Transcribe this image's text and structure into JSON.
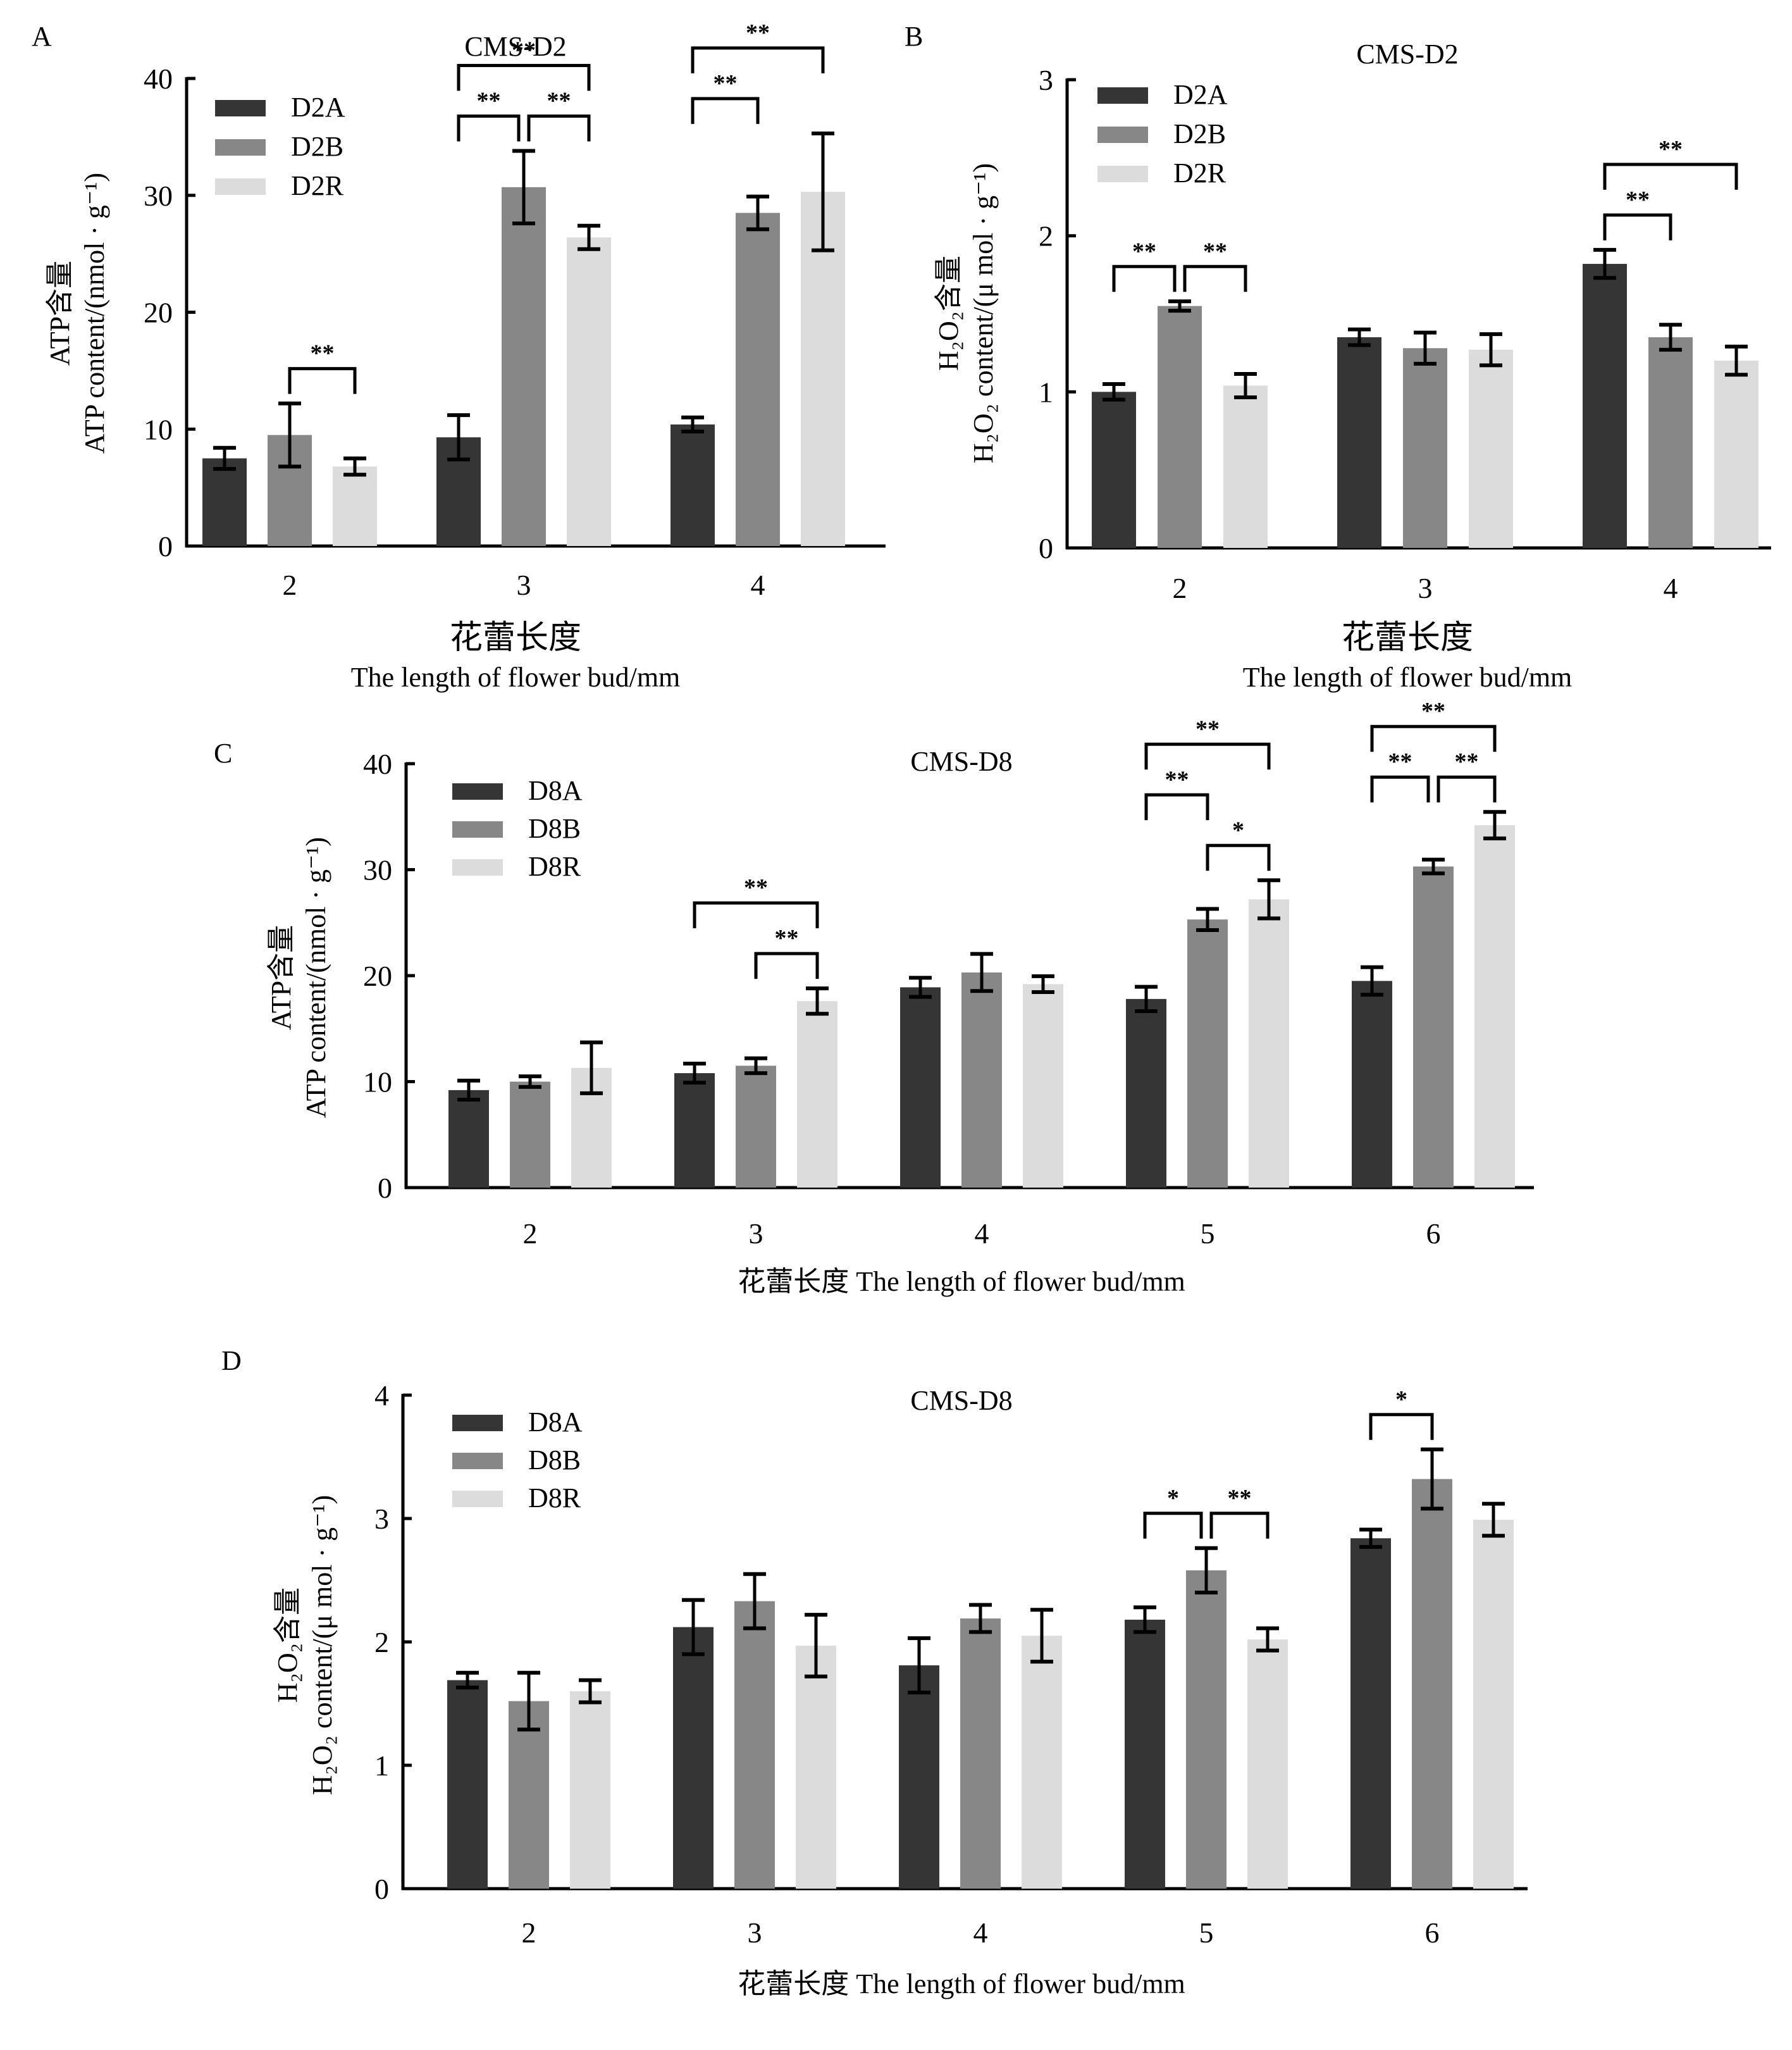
{
  "figure": {
    "colors": {
      "A": "#353535",
      "B": "#878787",
      "R": "#dcdcdc",
      "axis": "#000000"
    }
  },
  "chart_data": [
    {
      "panel": "A",
      "type": "bar",
      "title": "CMS-D2",
      "xlabel_cn": "花蕾长度",
      "xlabel_en": "The length of flower bud/mm",
      "ylabel_cn": "ATP含量",
      "ylabel_en": "ATP content/(nmol · g⁻¹)",
      "categories": [
        "2",
        "3",
        "4"
      ],
      "ylim": [
        0,
        40
      ],
      "yticks": [
        0,
        10,
        20,
        30,
        40
      ],
      "legend": "top-left",
      "series": [
        {
          "name": "D2A",
          "color_key": "A",
          "values": [
            7.5,
            9.3,
            10.4
          ],
          "errors": [
            0.9,
            1.9,
            0.6
          ]
        },
        {
          "name": "D2B",
          "color_key": "B",
          "values": [
            9.5,
            30.7,
            28.5
          ],
          "errors": [
            2.7,
            3.1,
            1.4
          ]
        },
        {
          "name": "D2R",
          "color_key": "R",
          "values": [
            6.8,
            26.4,
            30.3
          ],
          "errors": [
            0.7,
            1.0,
            5.0
          ]
        }
      ],
      "significance": [
        {
          "category": 0,
          "from": 1,
          "to": 2,
          "label": "**",
          "level": 0
        },
        {
          "category": 1,
          "from": 0,
          "to": 1,
          "label": "**",
          "level": 0
        },
        {
          "category": 1,
          "from": 1,
          "to": 2,
          "label": "**",
          "level": 0
        },
        {
          "category": 1,
          "from": 0,
          "to": 2,
          "label": "**",
          "level": 1
        },
        {
          "category": 2,
          "from": 0,
          "to": 1,
          "label": "**",
          "level": 0
        },
        {
          "category": 2,
          "from": 0,
          "to": 2,
          "label": "**",
          "level": 1
        }
      ]
    },
    {
      "panel": "B",
      "type": "bar",
      "title": "CMS-D2",
      "xlabel_cn": "花蕾长度",
      "xlabel_en": "The length of flower bud/mm",
      "ylabel_cn": "H₂O₂含量",
      "ylabel_en": "H₂O₂ content/(μ mol · g⁻¹)",
      "categories": [
        "2",
        "3",
        "4"
      ],
      "ylim": [
        0,
        3
      ],
      "yticks": [
        0,
        1,
        2,
        3
      ],
      "legend": "top-left",
      "series": [
        {
          "name": "D2A",
          "color_key": "A",
          "values": [
            1.0,
            1.35,
            1.82
          ],
          "errors": [
            0.05,
            0.05,
            0.09
          ]
        },
        {
          "name": "D2B",
          "color_key": "B",
          "values": [
            1.55,
            1.28,
            1.35
          ],
          "errors": [
            0.03,
            0.1,
            0.08
          ]
        },
        {
          "name": "D2R",
          "color_key": "R",
          "values": [
            1.04,
            1.27,
            1.2
          ],
          "errors": [
            0.075,
            0.1,
            0.09
          ]
        }
      ],
      "significance": [
        {
          "category": 0,
          "from": 0,
          "to": 1,
          "label": "**",
          "level": 0
        },
        {
          "category": 0,
          "from": 1,
          "to": 2,
          "label": "**",
          "level": 0
        },
        {
          "category": 2,
          "from": 0,
          "to": 1,
          "label": "**",
          "level": 0
        },
        {
          "category": 2,
          "from": 0,
          "to": 2,
          "label": "**",
          "level": 1
        }
      ]
    },
    {
      "panel": "C",
      "type": "bar",
      "title": "CMS-D8",
      "xlabel_cn": "花蕾长度",
      "xlabel_en": "The length of flower bud/mm",
      "ylabel_cn": "ATP含量",
      "ylabel_en": "ATP content/(nmol · g⁻¹)",
      "categories": [
        "2",
        "3",
        "4",
        "5",
        "6"
      ],
      "ylim": [
        0,
        40
      ],
      "yticks": [
        0,
        10,
        20,
        30,
        40
      ],
      "legend": "top-left",
      "series": [
        {
          "name": "D8A",
          "color_key": "A",
          "values": [
            9.2,
            10.8,
            18.9,
            17.8,
            19.5
          ],
          "errors": [
            0.9,
            0.9,
            0.9,
            1.15,
            1.3
          ]
        },
        {
          "name": "D8B",
          "color_key": "B",
          "values": [
            10.0,
            11.5,
            20.3,
            25.3,
            30.3
          ],
          "errors": [
            0.5,
            0.7,
            1.75,
            1.0,
            0.65
          ]
        },
        {
          "name": "D8R",
          "color_key": "R",
          "values": [
            11.3,
            17.6,
            19.2,
            27.2,
            34.2
          ],
          "errors": [
            2.4,
            1.2,
            0.75,
            1.8,
            1.25
          ]
        }
      ],
      "significance": [
        {
          "category": 1,
          "from": 1,
          "to": 2,
          "label": "**",
          "level": 0
        },
        {
          "category": 1,
          "from": 0,
          "to": 2,
          "label": "**",
          "level": 1
        },
        {
          "category": 3,
          "from": 1,
          "to": 2,
          "label": "*",
          "level": 0
        },
        {
          "category": 3,
          "from": 0,
          "to": 1,
          "label": "**",
          "level": 1
        },
        {
          "category": 3,
          "from": 0,
          "to": 2,
          "label": "**",
          "level": 2
        },
        {
          "category": 4,
          "from": 0,
          "to": 1,
          "label": "**",
          "level": 0
        },
        {
          "category": 4,
          "from": 1,
          "to": 2,
          "label": "**",
          "level": 0
        },
        {
          "category": 4,
          "from": 0,
          "to": 2,
          "label": "**",
          "level": 1
        }
      ]
    },
    {
      "panel": "D",
      "type": "bar",
      "title": "CMS-D8",
      "xlabel_cn": "花蕾长度",
      "xlabel_en": "The length of flower bud/mm",
      "ylabel_cn": "H₂O₂含量",
      "ylabel_en": "H₂O₂ content/(μ mol · g⁻¹)",
      "categories": [
        "2",
        "3",
        "4",
        "5",
        "6"
      ],
      "ylim": [
        0,
        4
      ],
      "yticks": [
        0,
        1,
        2,
        3,
        4
      ],
      "legend": "top-left",
      "series": [
        {
          "name": "D8A",
          "color_key": "A",
          "values": [
            1.69,
            2.12,
            1.81,
            2.18,
            2.84
          ],
          "errors": [
            0.06,
            0.22,
            0.22,
            0.1,
            0.07
          ]
        },
        {
          "name": "D8B",
          "color_key": "B",
          "values": [
            1.52,
            2.33,
            2.19,
            2.58,
            3.32
          ],
          "errors": [
            0.23,
            0.22,
            0.11,
            0.18,
            0.24
          ]
        },
        {
          "name": "D8R",
          "color_key": "R",
          "values": [
            1.6,
            1.97,
            2.05,
            2.02,
            2.99
          ],
          "errors": [
            0.09,
            0.25,
            0.21,
            0.09,
            0.13
          ]
        }
      ],
      "significance": [
        {
          "category": 3,
          "from": 0,
          "to": 1,
          "label": "*",
          "level": 0
        },
        {
          "category": 3,
          "from": 1,
          "to": 2,
          "label": "**",
          "level": 0
        },
        {
          "category": 4,
          "from": 0,
          "to": 1,
          "label": "*",
          "level": 0
        }
      ]
    }
  ]
}
